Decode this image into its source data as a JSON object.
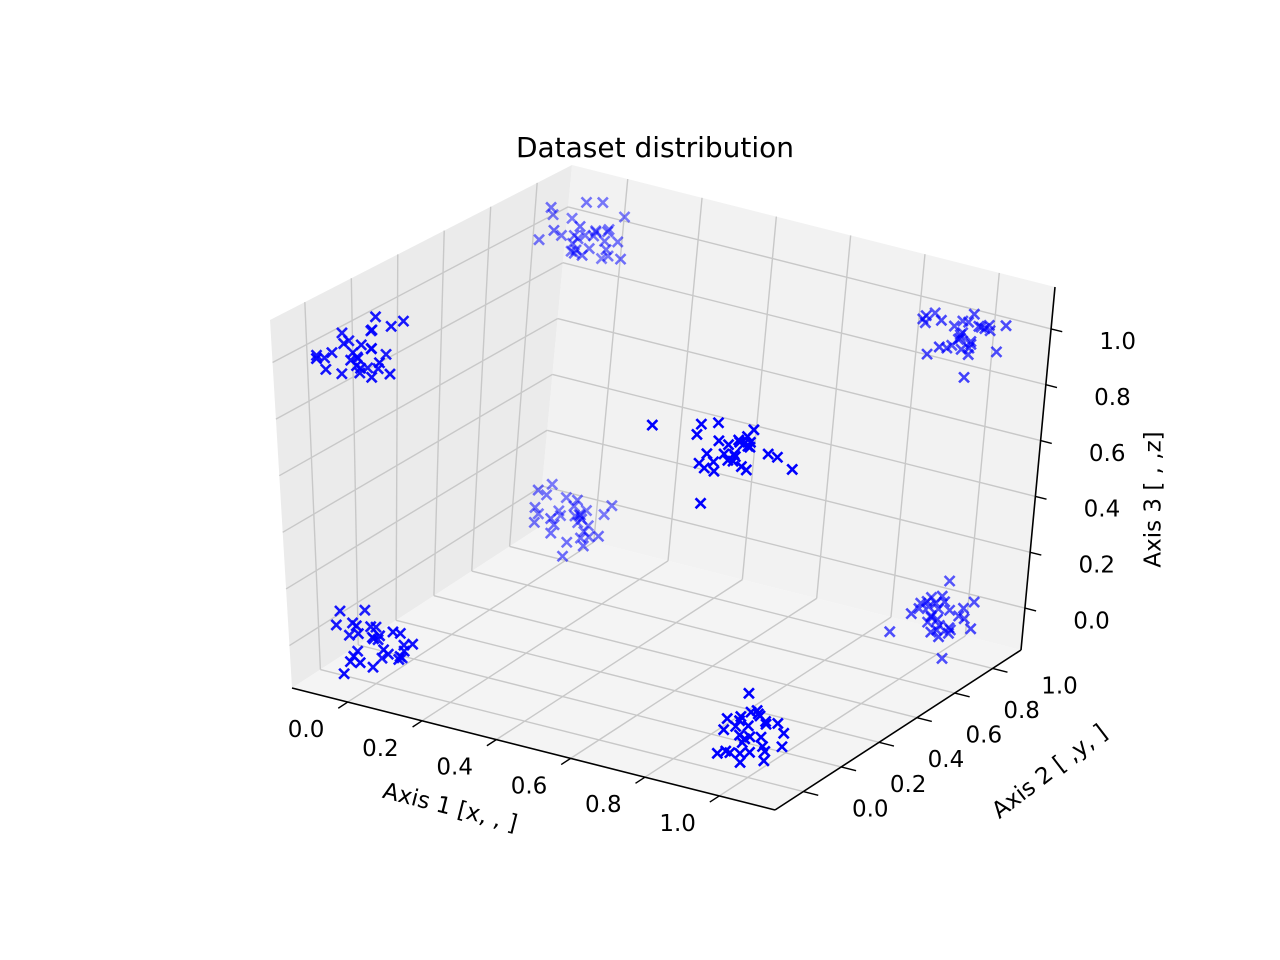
{
  "chart_data": {
    "type": "scatter",
    "projection": "3d",
    "title": "Dataset distribution",
    "xlabel": "Axis 1 [x, , ]",
    "ylabel": "Axis 2 [ ,y, ]",
    "zlabel": "Axis 3 [ , ,z]",
    "xlim": [
      -0.15,
      1.15
    ],
    "ylim": [
      -0.15,
      1.15
    ],
    "zlim": [
      -0.15,
      1.15
    ],
    "xticks": [
      0.0,
      0.2,
      0.4,
      0.6,
      0.8,
      1.0
    ],
    "yticks": [
      0.0,
      0.2,
      0.4,
      0.6,
      0.8,
      1.0
    ],
    "zticks": [
      0.0,
      0.2,
      0.4,
      0.6,
      0.8,
      1.0
    ],
    "tick_labels": [
      "0.0",
      "0.2",
      "0.4",
      "0.6",
      "0.8",
      "1.0"
    ],
    "grid": true,
    "marker": "x",
    "color": "#0000ff",
    "clusters": [
      {
        "center": [
          0,
          0,
          0
        ],
        "n": 30
      },
      {
        "center": [
          1,
          0,
          0
        ],
        "n": 30
      },
      {
        "center": [
          0,
          1,
          0
        ],
        "n": 30
      },
      {
        "center": [
          1,
          1,
          0
        ],
        "n": 30
      },
      {
        "center": [
          0,
          0,
          1
        ],
        "n": 30
      },
      {
        "center": [
          1,
          0,
          1
        ],
        "n": 30
      },
      {
        "center": [
          0,
          1,
          1
        ],
        "n": 30
      },
      {
        "center": [
          1,
          1,
          1
        ],
        "n": 30
      }
    ],
    "cluster_spread": 0.05
  }
}
